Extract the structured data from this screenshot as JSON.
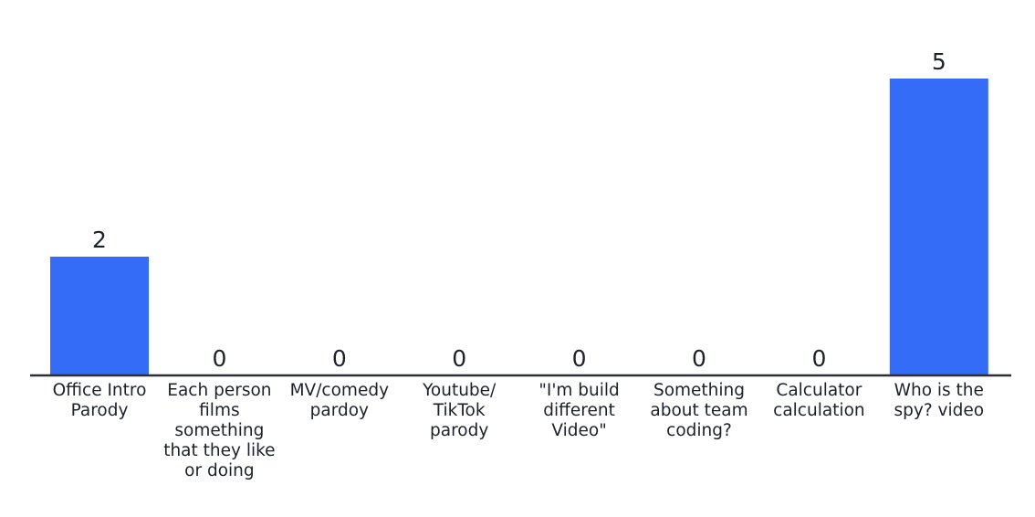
{
  "chart_data": {
    "type": "bar",
    "categories": [
      "Office Intro Parody",
      "Each person films something that they like or doing",
      "MV/comedy pardoy",
      "Youtube/ TikTok parody",
      "\"I'm build different Video\"",
      "Something about team coding?",
      "Calculator calculation",
      "Who is the spy? video"
    ],
    "values": [
      2,
      0,
      0,
      0,
      0,
      0,
      0,
      5
    ],
    "bar_color": "#356cf7",
    "axis_color": "#2b2f36",
    "text_color": "#1d2129",
    "ylim": [
      0,
      5
    ],
    "grid": false,
    "legend": "none",
    "data_labels": true
  }
}
